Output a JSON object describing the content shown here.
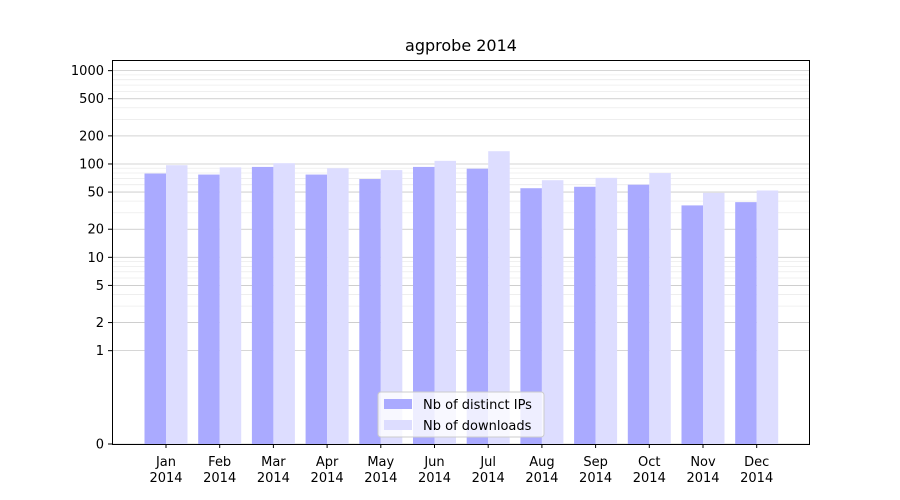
{
  "chart_data": {
    "type": "bar",
    "title": "agprobe 2014",
    "xlabel": "",
    "ylabel": "",
    "yscale": "symlog",
    "ylim": [
      0,
      1300
    ],
    "yticks": [
      0,
      1,
      2,
      5,
      10,
      20,
      50,
      100,
      200,
      500,
      1000
    ],
    "ytick_labels": [
      "0",
      "1",
      "2",
      "5",
      "10",
      "20",
      "50",
      "100",
      "200",
      "500",
      "1000"
    ],
    "grid": true,
    "legend_position": "bottom-center",
    "categories": [
      "Jan\n2014",
      "Feb\n2014",
      "Mar\n2014",
      "Apr\n2014",
      "May\n2014",
      "Jun\n2014",
      "Jul\n2014",
      "Aug\n2014",
      "Sep\n2014",
      "Oct\n2014",
      "Nov\n2014",
      "Dec\n2014"
    ],
    "category_lines": [
      [
        "Jan",
        "2014"
      ],
      [
        "Feb",
        "2014"
      ],
      [
        "Mar",
        "2014"
      ],
      [
        "Apr",
        "2014"
      ],
      [
        "May",
        "2014"
      ],
      [
        "Jun",
        "2014"
      ],
      [
        "Jul",
        "2014"
      ],
      [
        "Aug",
        "2014"
      ],
      [
        "Sep",
        "2014"
      ],
      [
        "Oct",
        "2014"
      ],
      [
        "Nov",
        "2014"
      ],
      [
        "Dec",
        "2014"
      ]
    ],
    "series": [
      {
        "name": "Nb of distinct IPs",
        "color": "#aaaaff",
        "values": [
          79,
          77,
          93,
          77,
          69,
          93,
          89,
          55,
          57,
          60,
          36,
          39
        ]
      },
      {
        "name": "Nb of downloads",
        "color": "#ddddff",
        "values": [
          97,
          92,
          102,
          90,
          86,
          108,
          137,
          67,
          71,
          80,
          49,
          52
        ]
      }
    ]
  }
}
